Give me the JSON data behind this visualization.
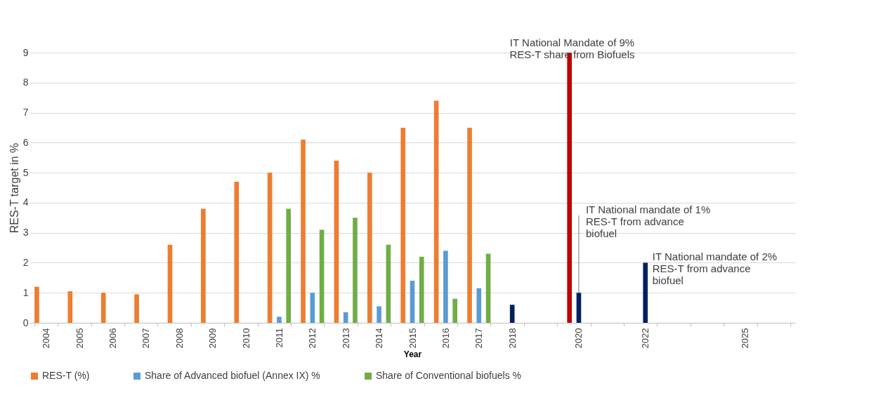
{
  "chart_data": {
    "type": "bar",
    "xlabel": "Year",
    "ylabel": "RES-T target in %",
    "categories": [
      "2004",
      "2005",
      "2006",
      "2007",
      "2008",
      "2009",
      "2010",
      "2011",
      "2012",
      "2013",
      "2014",
      "2015",
      "2016",
      "2017",
      "2018",
      null,
      "2020",
      null,
      "2022",
      null,
      null,
      "2025",
      null
    ],
    "series": [
      {
        "name": "RES-T (%)",
        "color": "#ed7d31",
        "colors": [
          "#ed7d31",
          "#ed7d31",
          "#ed7d31",
          "#ed7d31",
          "#ed7d31",
          "#ed7d31",
          "#ed7d31",
          "#ed7d31",
          "#ed7d31",
          "#ed7d31",
          "#ed7d31",
          "#ed7d31",
          "#ed7d31",
          "#ed7d31",
          null,
          null,
          "#c00000",
          null,
          null,
          null,
          null,
          null,
          null
        ],
        "values": [
          1.2,
          1.05,
          1.0,
          0.95,
          2.6,
          3.8,
          4.7,
          5.0,
          6.1,
          5.4,
          5.0,
          6.5,
          7.4,
          6.5,
          null,
          null,
          9,
          null,
          null,
          null,
          null,
          null,
          null
        ]
      },
      {
        "name": "Share of Advanced biofuel (Annex IX) %",
        "color": "#5b9bd5",
        "colors": [
          null,
          null,
          null,
          null,
          null,
          null,
          null,
          "#5b9bd5",
          "#5b9bd5",
          "#5b9bd5",
          "#5b9bd5",
          "#5b9bd5",
          "#5b9bd5",
          "#5b9bd5",
          "#002060",
          null,
          "#002060",
          null,
          "#002060",
          null,
          null,
          null,
          null
        ],
        "values": [
          null,
          null,
          null,
          null,
          null,
          null,
          null,
          0.2,
          1.0,
          0.35,
          0.55,
          1.4,
          2.4,
          1.15,
          0.6,
          null,
          1,
          null,
          2,
          null,
          null,
          null,
          null
        ]
      },
      {
        "name": "Share of Conventional biofuels %",
        "color": "#70ad47",
        "values": [
          null,
          null,
          null,
          null,
          null,
          null,
          null,
          3.8,
          3.1,
          3.5,
          2.6,
          2.2,
          0.8,
          2.3,
          null,
          null,
          null,
          null,
          null,
          null,
          null,
          null,
          null
        ]
      }
    ],
    "ylim": [
      0,
      9
    ],
    "yticks": [
      0,
      1,
      2,
      3,
      4,
      5,
      6,
      7,
      8,
      9
    ],
    "grid": "y",
    "legend": "bottom",
    "annotations": [
      "IT National Mandate of 9%\nRES-T share from Biofuels",
      {
        "text": "IT National mandate of 1%\nRES-T from advance\nbiofuel",
        "x": "2020",
        "y": 1
      },
      {
        "text": "IT National mandate of 2%\nRES-T from advance\nbiofuel",
        "x": "2022",
        "y": 2
      }
    ]
  }
}
